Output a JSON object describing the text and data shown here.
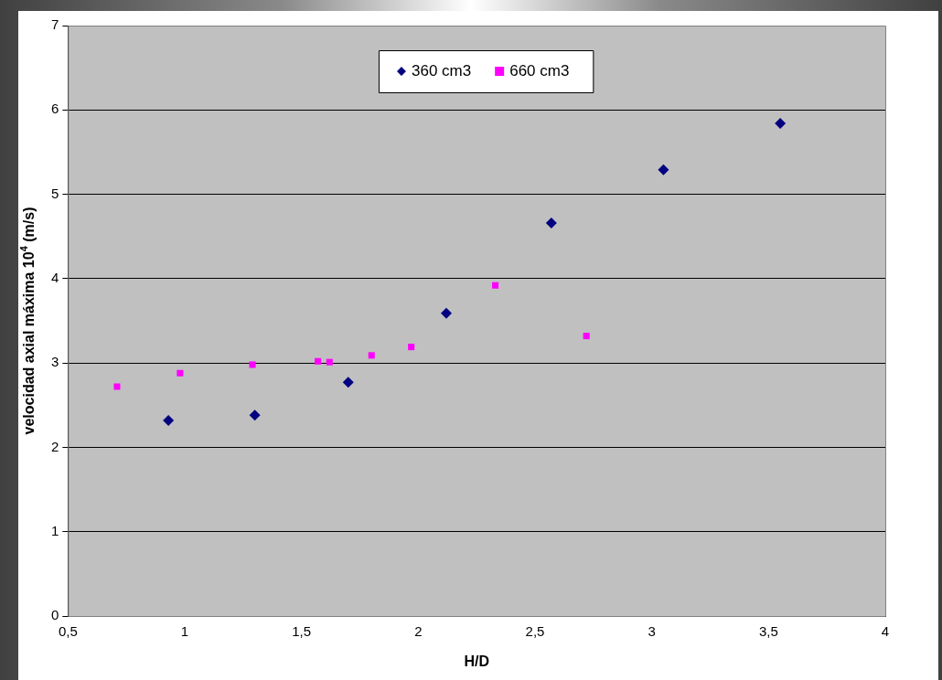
{
  "chart_data": {
    "type": "scatter",
    "xlabel": "H/D",
    "ylabel": "velocidad axial máxima 10$^{4}$ (m/s)",
    "xlim": [
      0.5,
      4
    ],
    "xticks": [
      {
        "value": 0.5,
        "label": "0,5"
      },
      1,
      {
        "value": 1.5,
        "label": "1,5"
      },
      2,
      {
        "value": 2.5,
        "label": "2,5"
      },
      3,
      {
        "value": 3.5,
        "label": "3,5"
      },
      4
    ],
    "ylim": [
      0,
      7
    ],
    "yticks": [
      0,
      1,
      2,
      3,
      4,
      5,
      6,
      7
    ],
    "grid": "y",
    "legend": "top",
    "series": [
      {
        "name": "360 cm3",
        "color": "#000080",
        "marker": "diamond",
        "x": [
          0.93,
          1.3,
          1.7,
          2.12,
          2.57,
          3.05,
          3.55
        ],
        "values": [
          2.32,
          2.38,
          2.77,
          3.59,
          4.66,
          5.29,
          5.84
        ]
      },
      {
        "name": "660 cm3",
        "color": "#ff00ff",
        "marker": "square",
        "x": [
          0.71,
          0.98,
          1.29,
          1.57,
          1.62,
          1.8,
          1.97,
          2.33,
          2.72
        ],
        "values": [
          2.72,
          2.88,
          2.98,
          3.02,
          3.01,
          3.09,
          3.19,
          3.92,
          3.32
        ]
      }
    ]
  }
}
